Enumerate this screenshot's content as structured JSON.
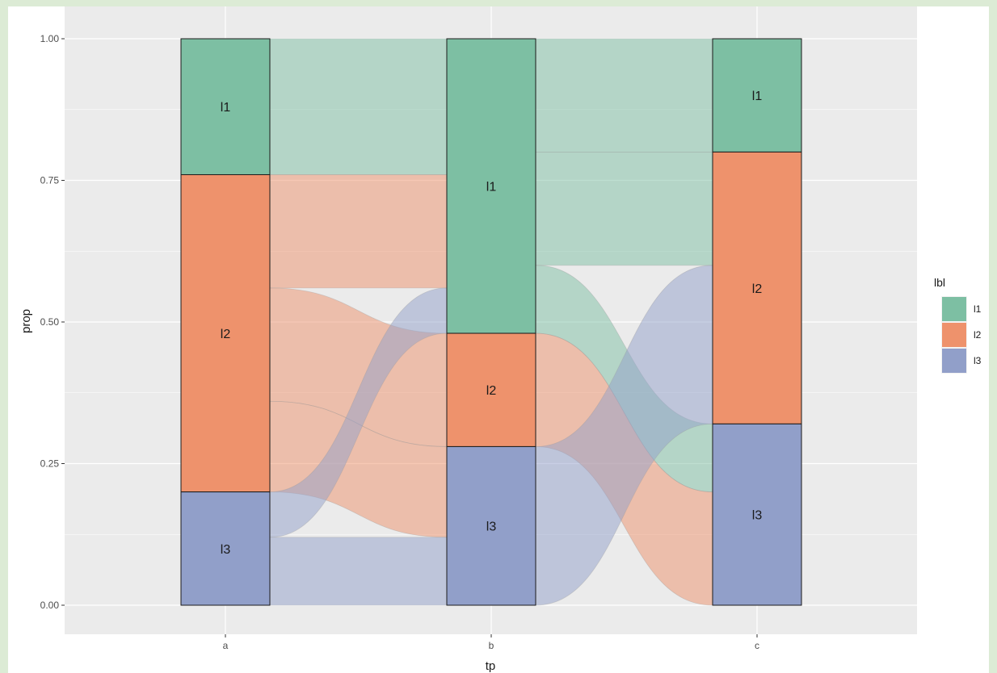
{
  "chart_data": {
    "type": "alluvial",
    "xlabel": "tp",
    "ylabel": "prop",
    "ylim": [
      0,
      1
    ],
    "yticks": [
      "0.00",
      "0.25",
      "0.50",
      "0.75",
      "1.00"
    ],
    "ytick_values": [
      0,
      0.25,
      0.5,
      0.75,
      1
    ],
    "categories": [
      "a",
      "b",
      "c"
    ],
    "legend": {
      "title": "lbl",
      "position": "right"
    },
    "series": [
      {
        "name": "l1",
        "color": "#7dbfa3"
      },
      {
        "name": "l2",
        "color": "#ee926c"
      },
      {
        "name": "l3",
        "color": "#919fc9"
      }
    ],
    "stacks": [
      {
        "category": "a",
        "segments": [
          {
            "label": "l1",
            "value": 0.24
          },
          {
            "label": "l2",
            "value": 0.56
          },
          {
            "label": "l3",
            "value": 0.2
          }
        ]
      },
      {
        "category": "b",
        "segments": [
          {
            "label": "l1",
            "value": 0.52
          },
          {
            "label": "l2",
            "value": 0.2
          },
          {
            "label": "l3",
            "value": 0.28
          }
        ]
      },
      {
        "category": "c",
        "segments": [
          {
            "label": "l1",
            "value": 0.2
          },
          {
            "label": "l2",
            "value": 0.48
          },
          {
            "label": "l3",
            "value": 0.32
          }
        ]
      }
    ],
    "flows": [
      {
        "from": "a",
        "to": "b",
        "from_label": "l1",
        "to_label": "l1",
        "value": 0.24,
        "color": "l1"
      },
      {
        "from": "a",
        "to": "b",
        "from_label": "l2",
        "to_label": "l1",
        "value": 0.2,
        "color": "l2"
      },
      {
        "from": "a",
        "to": "b",
        "from_label": "l2",
        "to_label": "l2",
        "value": 0.2,
        "color": "l2"
      },
      {
        "from": "a",
        "to": "b",
        "from_label": "l2",
        "to_label": "l3",
        "value": 0.16,
        "color": "l2"
      },
      {
        "from": "a",
        "to": "b",
        "from_label": "l3",
        "to_label": "l1",
        "value": 0.08,
        "color": "l3"
      },
      {
        "from": "a",
        "to": "b",
        "from_label": "l3",
        "to_label": "l3",
        "value": 0.12,
        "color": "l3"
      },
      {
        "from": "b",
        "to": "c",
        "from_label": "l1",
        "to_label": "l1",
        "value": 0.2,
        "color": "l1"
      },
      {
        "from": "b",
        "to": "c",
        "from_label": "l1",
        "to_label": "l2",
        "value": 0.2,
        "color": "l1"
      },
      {
        "from": "b",
        "to": "c",
        "from_label": "l1",
        "to_label": "l3",
        "value": 0.12,
        "color": "l1"
      },
      {
        "from": "b",
        "to": "c",
        "from_label": "l2",
        "to_label": "l3",
        "value": 0.2,
        "color": "l2"
      },
      {
        "from": "b",
        "to": "c",
        "from_label": "l3",
        "to_label": "l2",
        "value": 0.28,
        "color": "l3"
      }
    ]
  }
}
